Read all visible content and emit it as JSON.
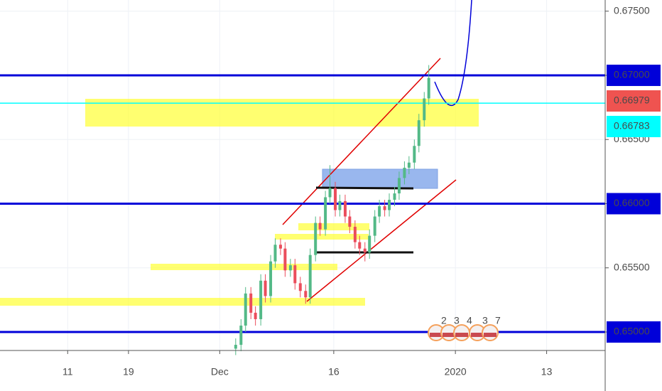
{
  "chart_data": {
    "type": "candlestick",
    "x": [
      33.1,
      33.8,
      34.4,
      35.1,
      35.7,
      36.4,
      37.0,
      37.7,
      38.3,
      39.0,
      39.6,
      40.3,
      40.9,
      41.6,
      42.3,
      42.9,
      43.6,
      44.2,
      44.9,
      45.5,
      46.2,
      46.8,
      47.5,
      48.1,
      48.8,
      49.4,
      50.1,
      50.7,
      51.4,
      52.0,
      52.7,
      53.3,
      54.0,
      54.6,
      55.3,
      55.9,
      56.6,
      57.2,
      57.9,
      58.5
    ],
    "open": [
      0.6487,
      0.649,
      0.6505,
      0.653,
      0.6515,
      0.651,
      0.654,
      0.6528,
      0.6555,
      0.6568,
      0.6565,
      0.6548,
      0.6552,
      0.6538,
      0.6532,
      0.6527,
      0.656,
      0.6585,
      0.658,
      0.6605,
      0.6612,
      0.6595,
      0.6602,
      0.659,
      0.6582,
      0.657,
      0.6565,
      0.6562,
      0.6575,
      0.659,
      0.6598,
      0.6595,
      0.6603,
      0.6608,
      0.662,
      0.6628,
      0.6632,
      0.6645,
      0.6665,
      0.6682
    ],
    "high": [
      0.6495,
      0.651,
      0.6535,
      0.6535,
      0.652,
      0.6545,
      0.6545,
      0.656,
      0.6573,
      0.6573,
      0.657,
      0.6557,
      0.6557,
      0.6543,
      0.6537,
      0.6565,
      0.659,
      0.659,
      0.661,
      0.663,
      0.6617,
      0.6607,
      0.6607,
      0.6595,
      0.6587,
      0.6575,
      0.657,
      0.658,
      0.6595,
      0.6603,
      0.6603,
      0.6608,
      0.6613,
      0.6625,
      0.6633,
      0.6637,
      0.665,
      0.667,
      0.6687,
      0.6708
    ],
    "low": [
      0.6482,
      0.6485,
      0.65,
      0.651,
      0.6505,
      0.6505,
      0.6523,
      0.6523,
      0.655,
      0.656,
      0.6543,
      0.6543,
      0.6533,
      0.6527,
      0.6522,
      0.6522,
      0.6555,
      0.6575,
      0.6575,
      0.66,
      0.659,
      0.659,
      0.6585,
      0.6577,
      0.6565,
      0.656,
      0.6555,
      0.6557,
      0.657,
      0.6585,
      0.659,
      0.659,
      0.6598,
      0.6603,
      0.6615,
      0.6623,
      0.6627,
      0.664,
      0.666,
      0.6677
    ],
    "close": [
      0.649,
      0.6505,
      0.653,
      0.6515,
      0.651,
      0.654,
      0.6528,
      0.6555,
      0.6568,
      0.6565,
      0.6548,
      0.6552,
      0.6538,
      0.6532,
      0.6527,
      0.656,
      0.6585,
      0.658,
      0.6605,
      0.6612,
      0.6595,
      0.6602,
      0.659,
      0.6582,
      0.657,
      0.6565,
      0.6562,
      0.6575,
      0.659,
      0.6598,
      0.6595,
      0.6603,
      0.6608,
      0.662,
      0.6628,
      0.6632,
      0.6645,
      0.6665,
      0.6682,
      0.6698
    ],
    "up_color": "#53b987",
    "down_color": "#eb4d5c",
    "xlim": [
      2.1,
      81.7
    ],
    "ylim": [
      0.64856,
      0.67587
    ],
    "xticks": [
      {
        "value": 11,
        "label": "11"
      },
      {
        "value": 19,
        "label": "19"
      },
      {
        "value": 31,
        "label": "Dec"
      },
      {
        "value": 46,
        "label": "16"
      },
      {
        "value": 62,
        "label": "2020"
      },
      {
        "value": 74,
        "label": "13"
      }
    ],
    "yticks": [
      {
        "value": 0.65,
        "label": "0.65000"
      },
      {
        "value": 0.655,
        "label": "0.65500"
      },
      {
        "value": 0.66,
        "label": "0.66000"
      },
      {
        "value": 0.665,
        "label": "0.66500"
      },
      {
        "value": 0.67,
        "label": "0.67000"
      },
      {
        "value": 0.675,
        "label": "0.67500"
      }
    ],
    "grid": true,
    "levels": [
      {
        "value": 0.67,
        "label": "0.67000",
        "color": "#0000d9"
      },
      {
        "value": 0.66979,
        "label": "0.66979",
        "color": "#ef5350"
      },
      {
        "value": 0.66783,
        "label": "0.66783",
        "color": "#00ffff"
      },
      {
        "value": 0.66,
        "label": "0.66000",
        "color": "#0000d9"
      },
      {
        "value": 0.65,
        "label": "0.65000",
        "color": "#0000d9"
      }
    ],
    "events": [
      "2",
      "3",
      "4",
      "3",
      "7"
    ]
  }
}
